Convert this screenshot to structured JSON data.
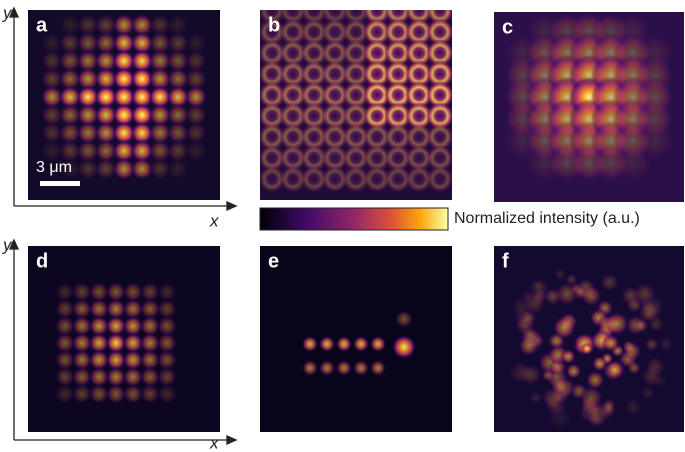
{
  "panels": [
    {
      "label": "a"
    },
    {
      "label": "b"
    },
    {
      "label": "c"
    },
    {
      "label": "d"
    },
    {
      "label": "e"
    },
    {
      "label": "f"
    }
  ],
  "scale_bar": "3 μm",
  "colorbar_label": "Normalized intensity (a.u.)",
  "axes": [
    {
      "x": "x",
      "y": "y"
    },
    {
      "x": "x",
      "y": "y"
    }
  ]
}
